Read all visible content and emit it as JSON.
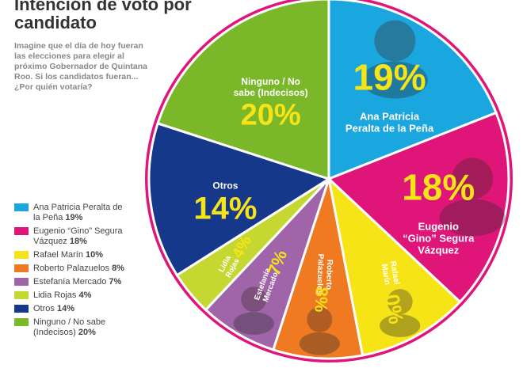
{
  "title": "Intención de voto por candidato",
  "subtitle": "Imagine que el día de hoy fueran las elecciones para elegir al próximo Gobernador de Quintana Roo. Si los candidatos fueran... ¿Por quién votaría?",
  "chart_data": {
    "type": "pie",
    "title": "Intención de voto por candidato",
    "unit": "%",
    "slices": [
      {
        "label": "Ana Patricia Peralta de la Peña",
        "display": "Ana Patricia\nPeralta de la Peña",
        "legend": "Ana Patricia Peralta de la Peña",
        "value": 19,
        "value_label": "19%",
        "color": "#1aa6df",
        "photo": true
      },
      {
        "label": "Eugenio “Gino” Segura Vázquez",
        "display": "Eugenio\n“Gino” Segura\nVázquez",
        "legend": "Eugenio “Gino” Segura Vázquez",
        "value": 18,
        "value_label": "18%",
        "color": "#e0157a",
        "photo": true
      },
      {
        "label": "Rafael Marín",
        "display": "Rafael\nMarín",
        "legend": "Rafael Marín",
        "value": 10,
        "value_label": "10%",
        "color": "#f7e416",
        "photo": true
      },
      {
        "label": "Roberto Palazuelos",
        "display": "Roberto\nPalazuelos",
        "legend": "Roberto Palazuelos",
        "value": 8,
        "value_label": "8%",
        "color": "#ef7a22",
        "photo": true
      },
      {
        "label": "Estefanía Mercado",
        "display": "Estefanía\nMercado",
        "legend": "Estefanía Mercado",
        "value": 7,
        "value_label": "7%",
        "color": "#a065a9",
        "photo": true
      },
      {
        "label": "Lidia Rojas",
        "display": "Lidia\nRojas",
        "legend": "Lidia Rojas",
        "value": 4,
        "value_label": "4%",
        "color": "#c5d831",
        "photo": false
      },
      {
        "label": "Otros",
        "display": "Otros",
        "legend": "Otros",
        "value": 14,
        "value_label": "14%",
        "color": "#15388b",
        "photo": false
      },
      {
        "label": "Ninguno / No sabe (Indecisos)",
        "display": "Ninguno / No\nsabe (Indecisos)",
        "legend": "Ninguno / No sabe (Indecisos)",
        "value": 20,
        "value_label": "20%",
        "color": "#7bb829",
        "photo": false
      }
    ]
  },
  "colors": {
    "outer_ring": "#e0157a",
    "slice_value_text": "#f7e416",
    "slice_label_text": "#ffffff",
    "title_text": "#333333",
    "subtitle_text": "#888888"
  }
}
